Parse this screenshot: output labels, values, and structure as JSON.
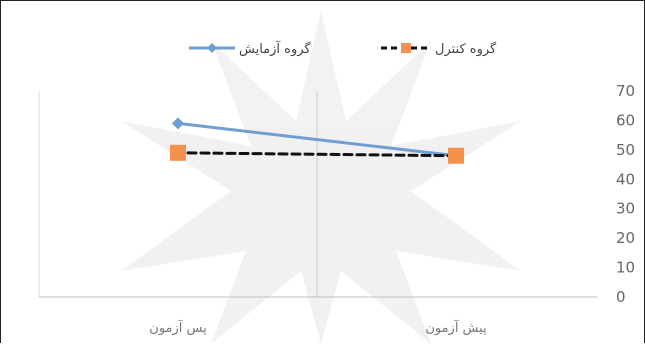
{
  "chart_data": {
    "type": "line",
    "categories": [
      "پیش آزمون",
      "پس آزمون"
    ],
    "x_axis_direction": "right-to-left",
    "ylim": [
      0,
      70
    ],
    "yticks": [
      0,
      10,
      20,
      30,
      40,
      50,
      60,
      70
    ],
    "y_axis_position": "right",
    "grid": false,
    "legend_position": "top",
    "series": [
      {
        "name": "گروه آزمایش",
        "values": [
          48,
          59
        ],
        "color": "#6f9fd2",
        "marker": "diamond",
        "line_style": "solid"
      },
      {
        "name": "گروه کنترل",
        "values": [
          48,
          49
        ],
        "color": "#f4914d",
        "line_color": "#111111",
        "marker": "square",
        "line_style": "dashed"
      }
    ]
  }
}
